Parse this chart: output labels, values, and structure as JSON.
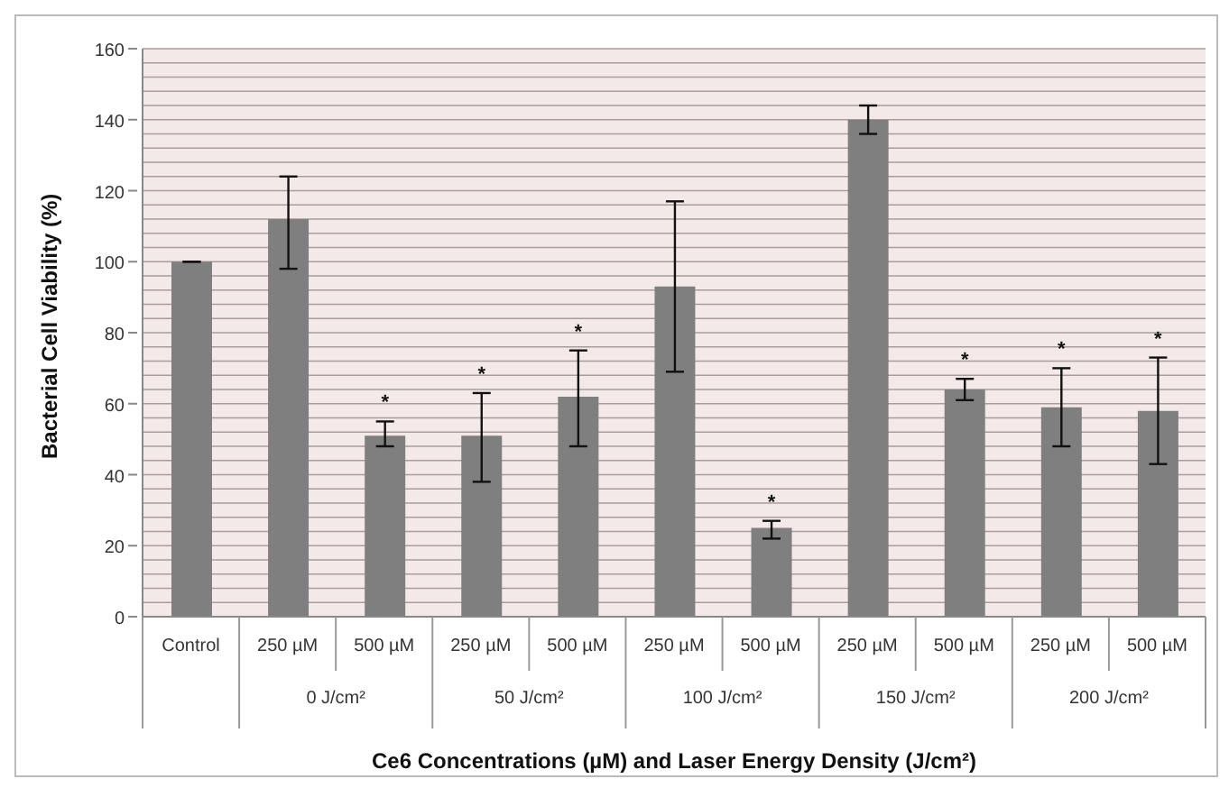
{
  "chart_data": {
    "type": "bar",
    "xlabel": "Ce6 Concentrations (µM) and Laser Energy Density (J/cm²)",
    "ylabel": "Bacterial Cell Viability (%)",
    "categories": [
      "Control",
      "250 µM",
      "500 µM",
      "250 µM",
      "500 µM",
      "250 µM",
      "500 µM",
      "250 µM",
      "500 µM",
      "250 µM",
      "500 µM"
    ],
    "values": [
      100,
      112,
      51,
      51,
      62,
      93,
      25,
      140,
      64,
      59,
      58
    ],
    "errors": [
      null,
      [
        98,
        124
      ],
      [
        48,
        55
      ],
      [
        38,
        63
      ],
      [
        48,
        75
      ],
      [
        69,
        117
      ],
      [
        22,
        27
      ],
      [
        136,
        144
      ],
      [
        61,
        67
      ],
      [
        48,
        70
      ],
      [
        43,
        73
      ]
    ],
    "value_labels": [
      null,
      null,
      "*",
      "*",
      "*",
      null,
      "*",
      null,
      "*",
      "*",
      "*"
    ],
    "color": "#7f7f7f",
    "ylim": [
      0,
      160
    ],
    "yticks": [
      0,
      {
        "value": 4,
        "label": null
      },
      {
        "value": 8,
        "label": null
      },
      {
        "value": 12,
        "label": null
      },
      {
        "value": 16,
        "label": null
      },
      20,
      {
        "value": 24,
        "label": null
      },
      {
        "value": 28,
        "label": null
      },
      {
        "value": 32,
        "label": null
      },
      {
        "value": 36,
        "label": null
      },
      40,
      {
        "value": 44,
        "label": null
      },
      {
        "value": 48,
        "label": null
      },
      {
        "value": 52,
        "label": null
      },
      {
        "value": 56,
        "label": null
      },
      60,
      {
        "value": 64,
        "label": null
      },
      {
        "value": 68,
        "label": null
      },
      {
        "value": 72,
        "label": null
      },
      {
        "value": 76,
        "label": null
      },
      80,
      {
        "value": 84,
        "label": null
      },
      {
        "value": 88,
        "label": null
      },
      {
        "value": 92,
        "label": null
      },
      {
        "value": 96,
        "label": null
      },
      100,
      {
        "value": 104,
        "label": null
      },
      {
        "value": 108,
        "label": null
      },
      {
        "value": 112,
        "label": null
      },
      {
        "value": 116,
        "label": null
      },
      120,
      {
        "value": 124,
        "label": null
      },
      {
        "value": 128,
        "label": null
      },
      {
        "value": 132,
        "label": null
      },
      {
        "value": 136,
        "label": null
      },
      140,
      {
        "value": 144,
        "label": null
      },
      {
        "value": 148,
        "label": null
      },
      {
        "value": 152,
        "label": null
      },
      {
        "value": 156,
        "label": null
      },
      160
    ],
    "grid": "y",
    "annotations": [
      "0 J/cm²",
      "50 J/cm²",
      "100 J/cm²",
      "150 J/cm²",
      "200 J/cm²"
    ]
  }
}
